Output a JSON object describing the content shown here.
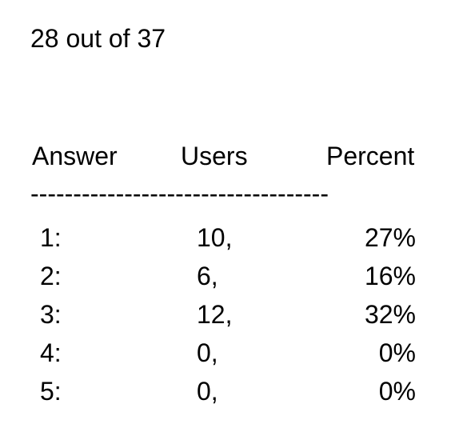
{
  "summary": "28 out of 37",
  "headers": {
    "answer": "Answer",
    "users": "Users",
    "percent": "Percent"
  },
  "divider": "-----------------------------------",
  "rows": [
    {
      "answer": "1:",
      "users": "10,",
      "percent": "27%"
    },
    {
      "answer": "2:",
      "users": "6,",
      "percent": "16%"
    },
    {
      "answer": "3:",
      "users": "12,",
      "percent": "32%"
    },
    {
      "answer": "4:",
      "users": "0,",
      "percent": "0%"
    },
    {
      "answer": "5:",
      "users": "0,",
      "percent": "0%"
    }
  ]
}
